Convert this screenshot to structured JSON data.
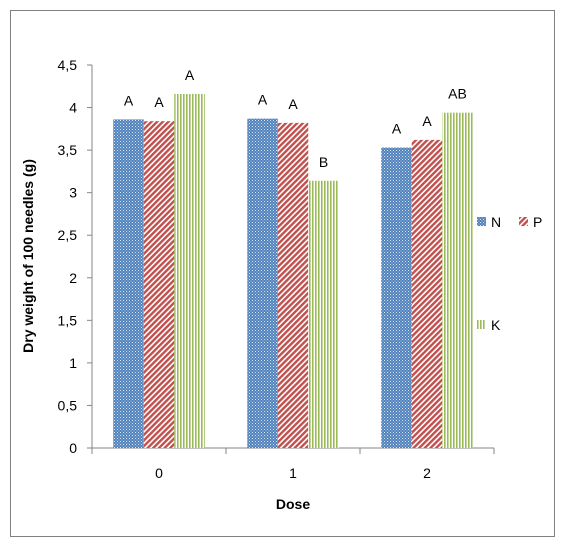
{
  "chart_data": {
    "type": "bar",
    "xlabel": "Dose",
    "ylabel": "Dry weight of 100 needles (g)",
    "categories": [
      "0",
      "1",
      "2"
    ],
    "ylim": [
      0,
      4.5
    ],
    "yticks": [
      "0",
      "0,5",
      "1",
      "1,5",
      "2",
      "2,5",
      "3",
      "3,5",
      "4",
      "4,5"
    ],
    "grid": false,
    "legend_position": "right",
    "series": [
      {
        "name": "N",
        "color": "#4f81bd",
        "pattern": "dotted",
        "values": [
          3.86,
          3.87,
          3.53
        ],
        "labels": [
          "A",
          "A",
          "A"
        ]
      },
      {
        "name": "P",
        "color": "#c0504d",
        "pattern": "diagonal-hatch",
        "values": [
          3.84,
          3.82,
          3.62
        ],
        "labels": [
          "A",
          "A",
          "A"
        ]
      },
      {
        "name": "K",
        "color": "#9bbb59",
        "pattern": "vertical-stripes",
        "values": [
          4.16,
          3.14,
          3.94
        ],
        "labels": [
          "A",
          "B",
          "AB"
        ]
      }
    ]
  }
}
